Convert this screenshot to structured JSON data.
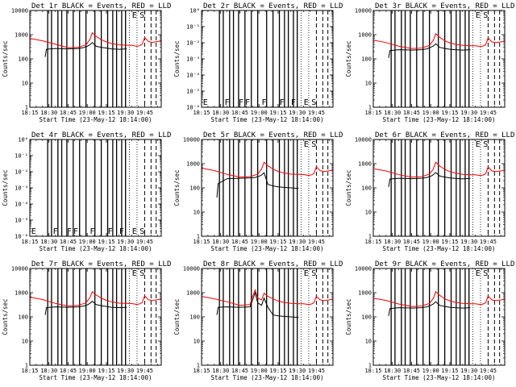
{
  "figure": {
    "time_axis": {
      "tick_labels": [
        "18:15",
        "18:30",
        "18:45",
        "19:00",
        "19:15",
        "19:30",
        "19:45"
      ],
      "tick_minutes": [
        0,
        15,
        30,
        45,
        60,
        75,
        90
      ],
      "range_minutes": [
        0,
        103
      ]
    },
    "colors": {
      "events": "#000000",
      "lld": "#ff0000",
      "frame": "#000000",
      "background": "#ffffff"
    },
    "flag_lines": {
      "solid_minutes": [
        14,
        17,
        22,
        25,
        29,
        34,
        39,
        44,
        51,
        56,
        61,
        65,
        68,
        72,
        75
      ],
      "dotted_minutes": [
        78,
        84
      ],
      "dashed_minutes": [
        90,
        95,
        99
      ],
      "flag_letters": [
        {
          "t": 3,
          "s": "E"
        },
        {
          "t": 20,
          "s": "F"
        },
        {
          "t": 31,
          "s": "F"
        },
        {
          "t": 36,
          "s": "F"
        },
        {
          "t": 49,
          "s": "F"
        },
        {
          "t": 63,
          "s": "F"
        },
        {
          "t": 72,
          "s": "F"
        },
        {
          "t": 82,
          "s": "E"
        },
        {
          "t": 88,
          "s": "S"
        }
      ]
    }
  },
  "chart_data": [
    {
      "type": "line",
      "title": "Det 1r BLACK = Events, RED = LLD",
      "xlabel": "Start Time (23-May-12 18:14:00)",
      "ylabel": "Counts/sec",
      "scale": "log",
      "ylim": [
        1,
        10000
      ],
      "ytick_labels": [
        "1",
        "10",
        "100",
        "1000",
        "10000"
      ],
      "flags_at": "top",
      "series": [
        {
          "color": "red",
          "x": [
            0,
            10,
            20,
            30,
            38,
            44,
            47,
            49,
            52,
            56,
            60,
            64,
            70,
            76,
            80,
            84,
            86,
            88,
            90,
            93,
            96,
            100,
            103
          ],
          "y": [
            700,
            560,
            400,
            290,
            300,
            380,
            620,
            1200,
            850,
            620,
            500,
            430,
            380,
            370,
            360,
            330,
            350,
            400,
            750,
            520,
            480,
            520,
            560
          ]
        },
        {
          "color": "black",
          "x": [
            12,
            13,
            20,
            30,
            38,
            42,
            45,
            47,
            49,
            52,
            56,
            60,
            64,
            70,
            76
          ],
          "y": [
            120,
            250,
            270,
            260,
            270,
            290,
            330,
            380,
            470,
            330,
            300,
            280,
            260,
            250,
            260
          ]
        }
      ]
    },
    {
      "type": "line",
      "title": "Det 2r BLACK = Events, RED = LLD",
      "xlabel": "Start Time (23-May-12 18:14:00)",
      "ylabel": "Counts/sec",
      "scale": "log",
      "ylim": [
        1e-06,
        1
      ],
      "ytick_labels": [
        "10⁻⁶",
        "10⁻⁵",
        "10⁻⁴",
        "10⁻³",
        "10⁻²",
        "10⁻¹",
        "10⁰"
      ],
      "flags_at": "bottom",
      "series": []
    },
    {
      "type": "line",
      "title": "Det 3r BLACK = Events, RED = LLD",
      "xlabel": "Start Time (23-May-12 18:14:00)",
      "ylabel": "Counts/sec",
      "scale": "log",
      "ylim": [
        1,
        10000
      ],
      "ytick_labels": [
        "1",
        "10",
        "100",
        "1000",
        "10000"
      ],
      "flags_at": "top",
      "series": [
        {
          "color": "red",
          "x": [
            0,
            10,
            20,
            30,
            38,
            44,
            47,
            49,
            52,
            56,
            60,
            64,
            70,
            76,
            80,
            84,
            86,
            88,
            90,
            93,
            96,
            100,
            103
          ],
          "y": [
            600,
            470,
            330,
            270,
            280,
            360,
            580,
            1100,
            780,
            560,
            460,
            400,
            360,
            350,
            350,
            320,
            340,
            380,
            720,
            500,
            470,
            500,
            540
          ]
        },
        {
          "color": "black",
          "x": [
            12,
            13,
            20,
            30,
            38,
            42,
            45,
            47,
            49,
            52,
            56,
            60,
            64,
            70,
            76
          ],
          "y": [
            110,
            220,
            240,
            230,
            240,
            260,
            300,
            340,
            420,
            300,
            270,
            250,
            240,
            230,
            240
          ]
        }
      ]
    },
    {
      "type": "line",
      "title": "Det 4r BLACK = Events, RED = LLD",
      "xlabel": "Start Time (23-May-12 18:14:00)",
      "ylabel": "Counts/sec",
      "scale": "log",
      "ylim": [
        1e-06,
        1
      ],
      "ytick_labels": [
        "10⁻⁶",
        "10⁻⁵",
        "10⁻⁴",
        "10⁻³",
        "10⁻²",
        "10⁻¹",
        "10⁰"
      ],
      "flags_at": "bottom",
      "series": []
    },
    {
      "type": "line",
      "title": "Det 5r BLACK = Events, RED = LLD",
      "xlabel": "Start Time (23-May-12 18:14:00)",
      "ylabel": "Counts/sec",
      "scale": "log",
      "ylim": [
        1,
        10000
      ],
      "ytick_labels": [
        "1",
        "10",
        "100",
        "1000",
        "10000"
      ],
      "flags_at": "top",
      "series": [
        {
          "color": "red",
          "x": [
            0,
            10,
            20,
            30,
            38,
            44,
            47,
            49,
            52,
            56,
            60,
            64,
            70,
            76,
            80,
            84,
            86,
            88,
            90,
            93,
            96,
            100,
            103
          ],
          "y": [
            650,
            520,
            360,
            280,
            290,
            370,
            600,
            1150,
            820,
            600,
            480,
            420,
            370,
            360,
            355,
            325,
            345,
            390,
            740,
            510,
            475,
            510,
            550
          ]
        },
        {
          "color": "black",
          "x": [
            12,
            13,
            20,
            30,
            38,
            42,
            45,
            47,
            49,
            52,
            56,
            60,
            64,
            70,
            76
          ],
          "y": [
            40,
            150,
            240,
            250,
            260,
            270,
            300,
            340,
            420,
            140,
            120,
            110,
            105,
            100,
            95
          ]
        }
      ]
    },
    {
      "type": "line",
      "title": "Det 6r BLACK = Events, RED = LLD",
      "xlabel": "Start Time (23-May-12 18:14:00)",
      "ylabel": "Counts/sec",
      "scale": "log",
      "ylim": [
        1,
        10000
      ],
      "ytick_labels": [
        "1",
        "10",
        "100",
        "1000",
        "10000"
      ],
      "flags_at": "top",
      "series": [
        {
          "color": "red",
          "x": [
            0,
            10,
            20,
            30,
            38,
            44,
            47,
            49,
            52,
            56,
            60,
            64,
            70,
            76,
            80,
            84,
            86,
            88,
            90,
            93,
            96,
            100,
            103
          ],
          "y": [
            620,
            500,
            350,
            280,
            290,
            370,
            600,
            1150,
            800,
            580,
            470,
            410,
            360,
            350,
            350,
            320,
            340,
            380,
            730,
            500,
            470,
            500,
            540
          ]
        },
        {
          "color": "black",
          "x": [
            12,
            13,
            20,
            30,
            38,
            42,
            45,
            47,
            49,
            52,
            56,
            60,
            64,
            70,
            76
          ],
          "y": [
            110,
            230,
            250,
            240,
            250,
            270,
            300,
            350,
            430,
            310,
            280,
            260,
            245,
            235,
            245
          ]
        }
      ]
    },
    {
      "type": "line",
      "title": "Det 7r BLACK = Events, RED = LLD",
      "xlabel": "Start Time (23-May-12 18:14:00)",
      "ylabel": "Counts/sec",
      "scale": "log",
      "ylim": [
        1,
        10000
      ],
      "ytick_labels": [
        "1",
        "10",
        "100",
        "1000",
        "10000"
      ],
      "flags_at": "top",
      "series": [
        {
          "color": "red",
          "x": [
            0,
            10,
            20,
            30,
            38,
            44,
            47,
            49,
            52,
            56,
            60,
            64,
            70,
            76,
            80,
            84,
            86,
            88,
            90,
            93,
            96,
            100,
            103
          ],
          "y": [
            650,
            520,
            360,
            280,
            300,
            380,
            610,
            1100,
            800,
            600,
            480,
            420,
            370,
            360,
            355,
            325,
            345,
            390,
            740,
            510,
            475,
            510,
            550
          ]
        },
        {
          "color": "black",
          "x": [
            12,
            13,
            20,
            30,
            38,
            42,
            45,
            47,
            49,
            52,
            56,
            60,
            64,
            70,
            76
          ],
          "y": [
            120,
            240,
            260,
            250,
            260,
            280,
            310,
            360,
            440,
            320,
            290,
            270,
            250,
            240,
            250
          ]
        }
      ]
    },
    {
      "type": "line",
      "title": "Det 8r BLACK = Events, RED = LLD",
      "xlabel": "Start Time (23-May-12 18:14:00)",
      "ylabel": "Counts/sec",
      "scale": "log",
      "ylim": [
        1,
        10000
      ],
      "ytick_labels": [
        "1",
        "10",
        "100",
        "1000",
        "10000"
      ],
      "flags_at": "top",
      "series": [
        {
          "color": "red",
          "x": [
            0,
            10,
            20,
            30,
            38,
            40,
            42,
            44,
            47,
            49,
            52,
            56,
            60,
            64,
            70,
            76,
            80,
            84,
            86,
            88,
            90,
            93,
            96,
            100,
            103
          ],
          "y": [
            700,
            560,
            420,
            300,
            320,
            700,
            1300,
            600,
            500,
            950,
            700,
            560,
            450,
            400,
            360,
            350,
            350,
            320,
            340,
            380,
            700,
            500,
            470,
            500,
            540
          ]
        },
        {
          "color": "black",
          "x": [
            12,
            13,
            20,
            30,
            38,
            40,
            42,
            44,
            47,
            49,
            52,
            56,
            60,
            64,
            70,
            76
          ],
          "y": [
            120,
            250,
            260,
            250,
            260,
            500,
            1000,
            380,
            300,
            600,
            250,
            120,
            110,
            105,
            100,
            95
          ]
        }
      ]
    },
    {
      "type": "line",
      "title": "Det 9r BLACK = Events, RED = LLD",
      "xlabel": "Start Time (23-May-12 18:14:00)",
      "ylabel": "Counts/sec",
      "scale": "log",
      "ylim": [
        1,
        10000
      ],
      "ytick_labels": [
        "1",
        "10",
        "100",
        "1000",
        "10000"
      ],
      "flags_at": "top",
      "series": [
        {
          "color": "red",
          "x": [
            0,
            10,
            20,
            30,
            38,
            44,
            47,
            49,
            52,
            56,
            60,
            64,
            70,
            76,
            80,
            84,
            86,
            88,
            90,
            93,
            96,
            100,
            103
          ],
          "y": [
            600,
            480,
            340,
            270,
            280,
            360,
            580,
            1100,
            780,
            560,
            460,
            400,
            360,
            350,
            350,
            320,
            340,
            380,
            720,
            500,
            470,
            500,
            540
          ]
        },
        {
          "color": "black",
          "x": [
            12,
            13,
            20,
            30,
            38,
            42,
            45,
            47,
            49,
            52,
            56,
            60,
            64,
            70,
            76
          ],
          "y": [
            110,
            220,
            240,
            230,
            240,
            260,
            300,
            340,
            420,
            300,
            270,
            250,
            240,
            230,
            240
          ]
        }
      ]
    }
  ]
}
